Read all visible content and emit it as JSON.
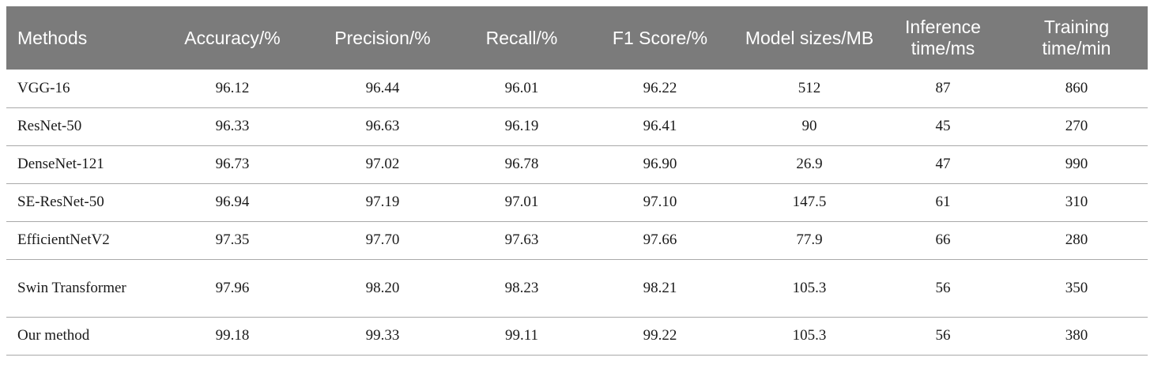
{
  "table": {
    "headers": [
      "Methods",
      "Accuracy/%",
      "Precision/%",
      "Recall/%",
      "F1 Score/%",
      "Model sizes/MB",
      "Inference time/ms",
      "Training time/min"
    ],
    "rows": [
      [
        "VGG-16",
        "96.12",
        "96.44",
        "96.01",
        "96.22",
        "512",
        "87",
        "860"
      ],
      [
        "ResNet-50",
        "96.33",
        "96.63",
        "96.19",
        "96.41",
        "90",
        "45",
        "270"
      ],
      [
        "DenseNet-121",
        "96.73",
        "97.02",
        "96.78",
        "96.90",
        "26.9",
        "47",
        "990"
      ],
      [
        "SE-ResNet-50",
        "96.94",
        "97.19",
        "97.01",
        "97.10",
        "147.5",
        "61",
        "310"
      ],
      [
        "EfficientNetV2",
        "97.35",
        "97.70",
        "97.63",
        "97.66",
        "77.9",
        "66",
        "280"
      ],
      [
        "Swin Transformer",
        "97.96",
        "98.20",
        "98.23",
        "98.21",
        "105.3",
        "56",
        "350"
      ],
      [
        "Our method",
        "99.18",
        "99.33",
        "99.11",
        "99.22",
        "105.3",
        "56",
        "380"
      ]
    ]
  }
}
